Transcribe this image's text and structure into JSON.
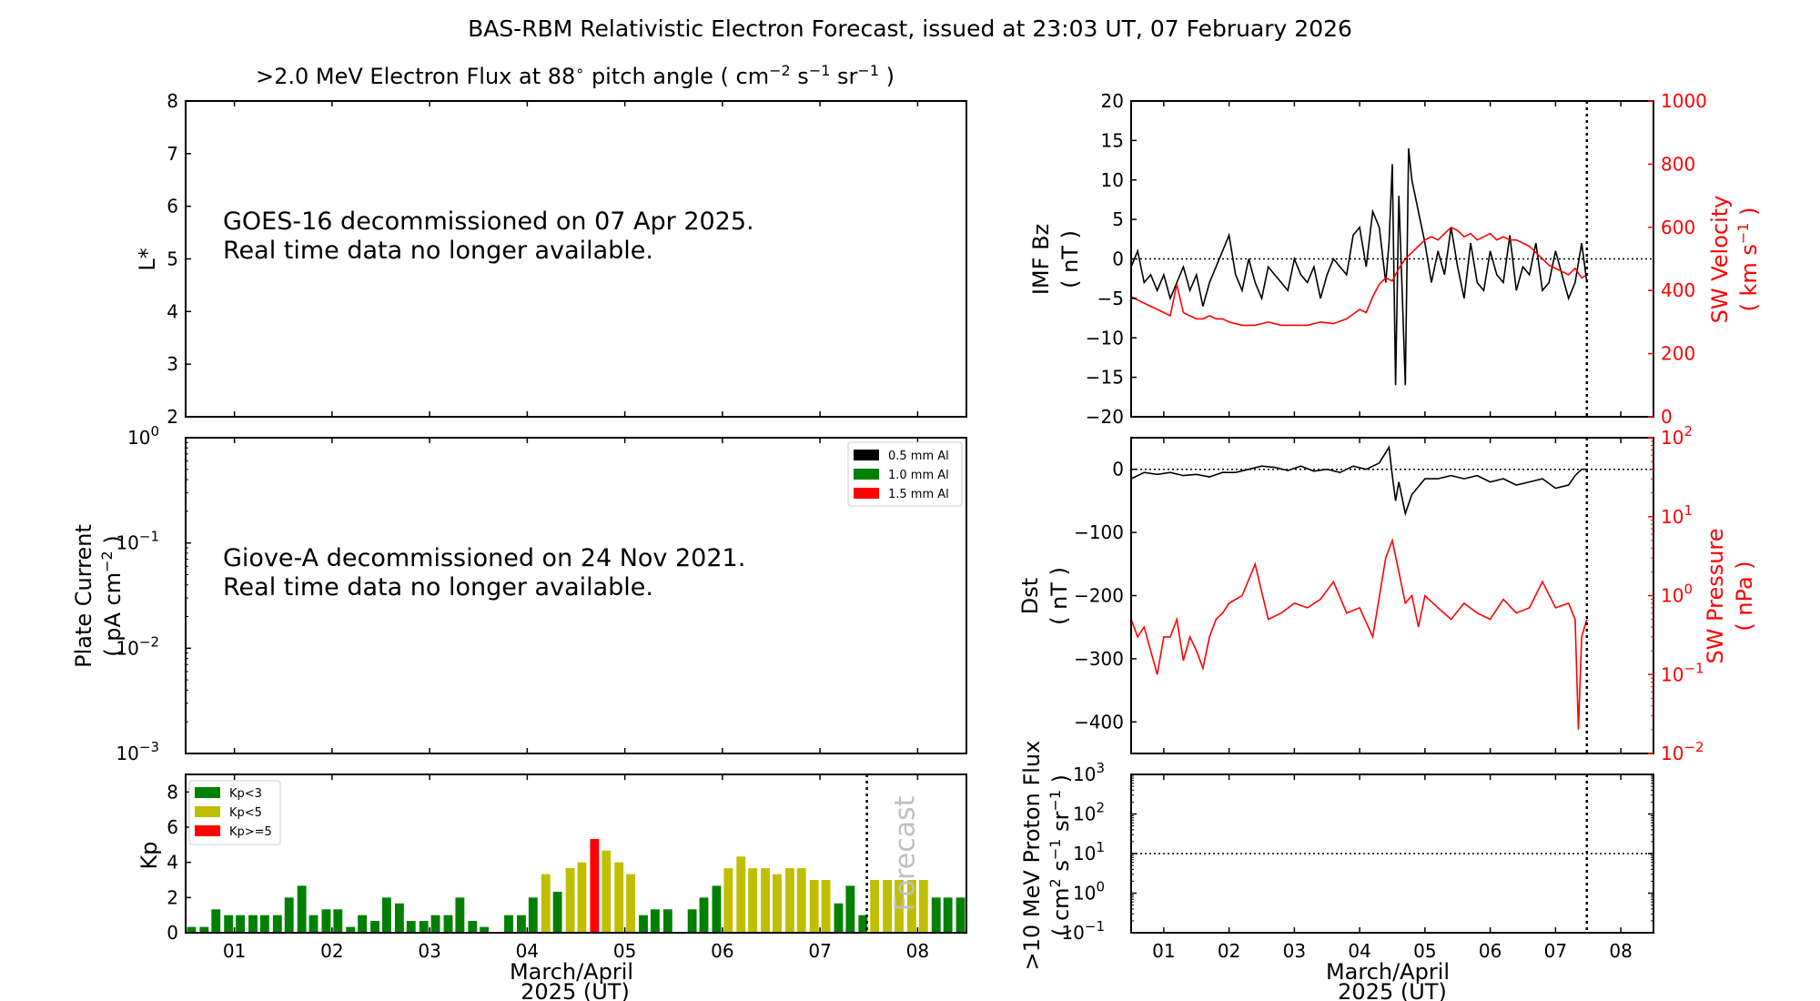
{
  "figure": {
    "title": "BAS-RBM Relativistic Electron Forecast, issued at 23:03 UT, 07 February 2026"
  },
  "chart_data": [
    {
      "id": "electron_flux",
      "type": "heatmap",
      "title": ">2.0 MeV Electron Flux at 88",
      "title_deg": "∘",
      "title_units": "pitch angle ( cm",
      "title_units_sup1": "−2",
      "title_units_s": " s",
      "title_units_sup2": "−1",
      "title_units_sr": " sr",
      "title_units_sup3": "−1",
      "title_units_end": " )",
      "ylabel": "L*",
      "ylim": [
        2,
        8
      ],
      "yticks": [
        "2",
        "3",
        "4",
        "5",
        "6",
        "7",
        "8"
      ],
      "messages": [
        "GOES-16 decommissioned on 07 Apr 2025.",
        "Real time data no longer available."
      ]
    },
    {
      "id": "plate_current",
      "type": "line",
      "ylabel": "Plate Current",
      "ylabel2": "( pA cm",
      "ylabel2_sup": "−2",
      "ylabel2_end": " )",
      "ylim": [
        0.001,
        1
      ],
      "yscale": "log",
      "yticks": [
        {
          "base": "10",
          "exp": "0"
        },
        {
          "base": "10",
          "exp": "−1"
        },
        {
          "base": "10",
          "exp": "−2"
        },
        {
          "base": "10",
          "exp": "−3"
        }
      ],
      "legend": [
        {
          "label": "0.5 mm Al",
          "color": "#000000"
        },
        {
          "label": "1.0 mm Al",
          "color": "#008000"
        },
        {
          "label": "1.5 mm Al",
          "color": "#ff0000"
        }
      ],
      "messages": [
        "Giove-A decommissioned on 24 Nov 2021.",
        "Real time data no longer available."
      ]
    },
    {
      "id": "kp",
      "type": "bar",
      "ylabel": "Kp",
      "ylim": [
        0,
        9
      ],
      "yticks": [
        "0",
        "2",
        "4",
        "6",
        "8"
      ],
      "xlim": [
        0.5,
        8.5
      ],
      "xticks": [
        "01",
        "02",
        "03",
        "04",
        "05",
        "06",
        "07",
        "08"
      ],
      "xlabel": "March/April",
      "xlabel2": "2025 (UT)",
      "bar_width_days": 0.1,
      "forecast_start": 7.48,
      "forecast_label": "Forecast",
      "legend": [
        {
          "label": "Kp<3",
          "color": "#008000"
        },
        {
          "label": "Kp<5",
          "color": "#bfbf00"
        },
        {
          "label": "Kp>=5",
          "color": "#ff0000"
        }
      ],
      "x": [
        0.56,
        0.69,
        0.81,
        0.94,
        1.06,
        1.19,
        1.31,
        1.44,
        1.56,
        1.69,
        1.81,
        1.94,
        2.06,
        2.19,
        2.31,
        2.44,
        2.56,
        2.69,
        2.81,
        2.94,
        3.06,
        3.19,
        3.31,
        3.44,
        3.56,
        3.69,
        3.81,
        3.94,
        4.06,
        4.19,
        4.31,
        4.44,
        4.56,
        4.69,
        4.81,
        4.94,
        5.06,
        5.19,
        5.31,
        5.44,
        5.56,
        5.69,
        5.81,
        5.94,
        6.06,
        6.19,
        6.31,
        6.44,
        6.56,
        6.69,
        6.81,
        6.94,
        7.06,
        7.19,
        7.31,
        7.44,
        7.56,
        7.69,
        7.81,
        7.94,
        8.06,
        8.19,
        8.31,
        8.44
      ],
      "values": [
        0.33,
        0.33,
        1.33,
        1.0,
        1.0,
        1.0,
        1.0,
        1.0,
        2.0,
        2.67,
        1.0,
        1.33,
        1.33,
        0.33,
        1.0,
        0.67,
        2.0,
        1.67,
        0.67,
        0.67,
        1.0,
        1.0,
        2.0,
        0.67,
        0.33,
        0,
        1.0,
        1.0,
        2.0,
        3.33,
        2.33,
        3.67,
        4.0,
        5.33,
        4.67,
        4.0,
        3.33,
        1.0,
        1.33,
        1.33,
        0,
        1.33,
        2.0,
        2.67,
        3.67,
        4.33,
        3.67,
        3.67,
        3.33,
        3.67,
        3.67,
        3.0,
        3.0,
        1.67,
        2.67,
        1.0,
        3.0,
        3.0,
        3.0,
        3.0,
        3.0,
        2.0,
        2.0,
        2.0
      ]
    },
    {
      "id": "imf_sw_velocity",
      "type": "line",
      "ylabel": "IMF Bz",
      "ylabel2": "( nT )",
      "ylim": [
        -20,
        20
      ],
      "yticks": [
        "−20",
        "−15",
        "−10",
        "−5",
        "0",
        "5",
        "10",
        "15",
        "20"
      ],
      "y2label": "SW Velocity",
      "y2label2": "( km s",
      "y2label2_sup": "−1",
      "y2label2_end": " )",
      "y2lim": [
        0,
        1000
      ],
      "y2ticks": [
        "0",
        "200",
        "400",
        "600",
        "800",
        "1000"
      ],
      "xlim": [
        0.5,
        8.5
      ],
      "now": 7.48,
      "series": [
        {
          "color": "#000000",
          "x": [
            0.5,
            0.6,
            0.7,
            0.8,
            0.9,
            1.0,
            1.1,
            1.2,
            1.3,
            1.4,
            1.5,
            1.6,
            1.7,
            1.8,
            1.9,
            2.0,
            2.1,
            2.2,
            2.3,
            2.4,
            2.5,
            2.6,
            2.7,
            2.8,
            2.9,
            3.0,
            3.1,
            3.2,
            3.3,
            3.4,
            3.5,
            3.6,
            3.7,
            3.8,
            3.9,
            4.0,
            4.1,
            4.2,
            4.3,
            4.4,
            4.45,
            4.5,
            4.55,
            4.6,
            4.65,
            4.7,
            4.75,
            4.8,
            4.9,
            5.0,
            5.1,
            5.2,
            5.3,
            5.4,
            5.5,
            5.6,
            5.7,
            5.8,
            5.9,
            6.0,
            6.1,
            6.2,
            6.3,
            6.4,
            6.5,
            6.6,
            6.7,
            6.8,
            6.9,
            7.0,
            7.1,
            7.2,
            7.3,
            7.4,
            7.48
          ],
          "values": [
            -1,
            1,
            -3,
            -2,
            -4,
            -2,
            -5,
            -3,
            -1,
            -4,
            -2,
            -6,
            -3,
            -1,
            1,
            3,
            -2,
            -4,
            0,
            -3,
            -5,
            -1,
            -2,
            -3,
            -4,
            0,
            -2,
            -3,
            -1,
            -5,
            -2,
            0,
            -1,
            -2,
            3,
            4,
            -1,
            6,
            4,
            -3,
            2,
            12,
            -16,
            8,
            -4,
            -16,
            14,
            10,
            6,
            2,
            -3,
            1,
            -2,
            4,
            -1,
            -5,
            2,
            -3,
            -4,
            1,
            -2,
            -3,
            3,
            -4,
            -1,
            -2,
            2,
            -4,
            -3,
            1,
            -2,
            -5,
            -3,
            2,
            -3
          ]
        },
        {
          "color": "#ff0000",
          "x": [
            0.5,
            0.6,
            0.7,
            0.8,
            0.9,
            1.0,
            1.1,
            1.2,
            1.3,
            1.4,
            1.5,
            1.6,
            1.7,
            1.8,
            1.9,
            2.0,
            2.2,
            2.4,
            2.6,
            2.8,
            3.0,
            3.2,
            3.4,
            3.6,
            3.8,
            4.0,
            4.1,
            4.2,
            4.3,
            4.4,
            4.5,
            4.6,
            4.7,
            4.8,
            4.9,
            5.0,
            5.1,
            5.2,
            5.3,
            5.4,
            5.5,
            5.6,
            5.7,
            5.8,
            5.9,
            6.0,
            6.1,
            6.2,
            6.3,
            6.4,
            6.5,
            6.6,
            6.7,
            6.8,
            6.9,
            7.0,
            7.1,
            7.2,
            7.3,
            7.4,
            7.48
          ],
          "values": [
            380,
            370,
            360,
            350,
            340,
            330,
            320,
            420,
            330,
            320,
            310,
            310,
            320,
            310,
            310,
            300,
            290,
            290,
            300,
            290,
            290,
            290,
            300,
            295,
            310,
            340,
            330,
            380,
            420,
            440,
            430,
            470,
            500,
            520,
            540,
            560,
            570,
            560,
            580,
            600,
            590,
            570,
            580,
            560,
            570,
            580,
            560,
            570,
            560,
            560,
            550,
            540,
            520,
            500,
            480,
            470,
            460,
            450,
            470,
            440,
            450
          ]
        }
      ]
    },
    {
      "id": "dst_sw_pressure",
      "type": "line",
      "ylabel": "Dst",
      "ylabel2": "( nT )",
      "ylim": [
        -450,
        50
      ],
      "yticks": [
        "−400",
        "−300",
        "−200",
        "−100",
        "0"
      ],
      "y2label": "SW Pressure",
      "y2label2": "( nPa )",
      "y2lim": [
        0.01,
        100
      ],
      "y2scale": "log",
      "y2ticks": [
        {
          "base": "10",
          "exp": "−2"
        },
        {
          "base": "10",
          "exp": "−1"
        },
        {
          "base": "10",
          "exp": "0"
        },
        {
          "base": "10",
          "exp": "1"
        },
        {
          "base": "10",
          "exp": "2"
        }
      ],
      "xlim": [
        0.5,
        8.5
      ],
      "now": 7.48,
      "series": [
        {
          "color": "#000000",
          "x": [
            0.5,
            0.7,
            0.9,
            1.1,
            1.3,
            1.5,
            1.7,
            1.9,
            2.1,
            2.3,
            2.5,
            2.7,
            2.9,
            3.1,
            3.3,
            3.5,
            3.7,
            3.9,
            4.1,
            4.3,
            4.45,
            4.5,
            4.55,
            4.6,
            4.7,
            4.8,
            5.0,
            5.2,
            5.4,
            5.6,
            5.8,
            6.0,
            6.2,
            6.4,
            6.6,
            6.8,
            7.0,
            7.2,
            7.3,
            7.4,
            7.48
          ],
          "values": [
            -15,
            -5,
            -8,
            -5,
            -10,
            -8,
            -12,
            -5,
            -5,
            0,
            5,
            3,
            -2,
            5,
            -3,
            0,
            -5,
            5,
            0,
            10,
            35,
            -10,
            -50,
            -20,
            -70,
            -40,
            -15,
            -15,
            -10,
            -15,
            -10,
            -20,
            -15,
            -25,
            -20,
            -15,
            -30,
            -25,
            -10,
            0,
            0
          ]
        },
        {
          "color": "#ff0000",
          "x": [
            0.5,
            0.6,
            0.7,
            0.8,
            0.9,
            1.0,
            1.1,
            1.2,
            1.3,
            1.4,
            1.5,
            1.6,
            1.7,
            1.8,
            1.9,
            2.0,
            2.2,
            2.4,
            2.6,
            2.8,
            3.0,
            3.2,
            3.4,
            3.6,
            3.8,
            4.0,
            4.2,
            4.4,
            4.5,
            4.6,
            4.7,
            4.8,
            4.9,
            5.0,
            5.2,
            5.4,
            5.6,
            5.8,
            6.0,
            6.2,
            6.4,
            6.6,
            6.8,
            7.0,
            7.2,
            7.3,
            7.35,
            7.4,
            7.48
          ],
          "values": [
            0.5,
            0.3,
            0.4,
            0.2,
            0.1,
            0.3,
            0.3,
            0.5,
            0.15,
            0.3,
            0.2,
            0.12,
            0.3,
            0.5,
            0.6,
            0.8,
            1.0,
            2.5,
            0.5,
            0.6,
            0.8,
            0.7,
            0.9,
            1.5,
            0.6,
            0.7,
            0.3,
            3,
            5,
            2,
            0.8,
            1.0,
            0.4,
            1.0,
            0.7,
            0.5,
            0.8,
            0.6,
            0.5,
            0.9,
            0.6,
            0.7,
            1.5,
            0.7,
            0.8,
            0.5,
            0.02,
            0.3,
            0.5
          ]
        }
      ]
    },
    {
      "id": "proton_flux",
      "type": "line",
      "ylabel": ">10 MeV Proton Flux",
      "ylabel2": "( cm",
      "ylabel2_sup1": "2",
      "ylabel2_s": " s",
      "ylabel2_sup2": "−1",
      "ylabel2_sr": " sr",
      "ylabel2_sup3": "−1",
      "ylabel2_end": " )",
      "ylim": [
        0.1,
        1000
      ],
      "yscale": "log",
      "yticks": [
        {
          "base": "10",
          "exp": "−1"
        },
        {
          "base": "10",
          "exp": "0"
        },
        {
          "base": "10",
          "exp": "1"
        },
        {
          "base": "10",
          "exp": "2"
        },
        {
          "base": "10",
          "exp": "3"
        }
      ],
      "xlim": [
        0.5,
        8.5
      ],
      "xticks": [
        "01",
        "02",
        "03",
        "04",
        "05",
        "06",
        "07",
        "08"
      ],
      "xlabel": "March/April",
      "xlabel2": "2025 (UT)",
      "threshold": 10,
      "now": 7.48
    }
  ]
}
